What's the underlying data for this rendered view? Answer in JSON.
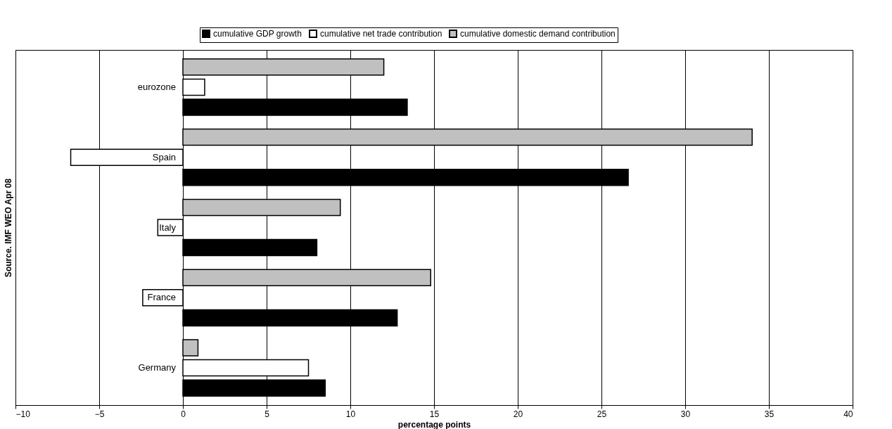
{
  "chart_data": {
    "type": "bar",
    "orientation": "horizontal",
    "categories": [
      "eurozone",
      "Spain",
      "Italy",
      "France",
      "Germany"
    ],
    "series": [
      {
        "name": "cumulative GDP growth",
        "color": "#000000",
        "values": [
          13.4,
          26.6,
          8.0,
          12.8,
          8.5
        ]
      },
      {
        "name": "cumulative net trade contribution",
        "color": "#ffffff",
        "values": [
          1.3,
          -6.7,
          -1.5,
          -2.4,
          7.5
        ]
      },
      {
        "name": "cumulative domestic demand contribution",
        "color": "#c0c0c0",
        "values": [
          12.0,
          34.0,
          9.4,
          14.8,
          0.9
        ]
      }
    ],
    "xlabel": "percentage points",
    "ylabel": "Source. IMF WEO Apr 08",
    "xlim": [
      -10,
      40
    ],
    "xticks": [
      -10,
      -5,
      0,
      5,
      10,
      15,
      20,
      25,
      30,
      35,
      40
    ],
    "grid": "x",
    "legend": "top"
  }
}
